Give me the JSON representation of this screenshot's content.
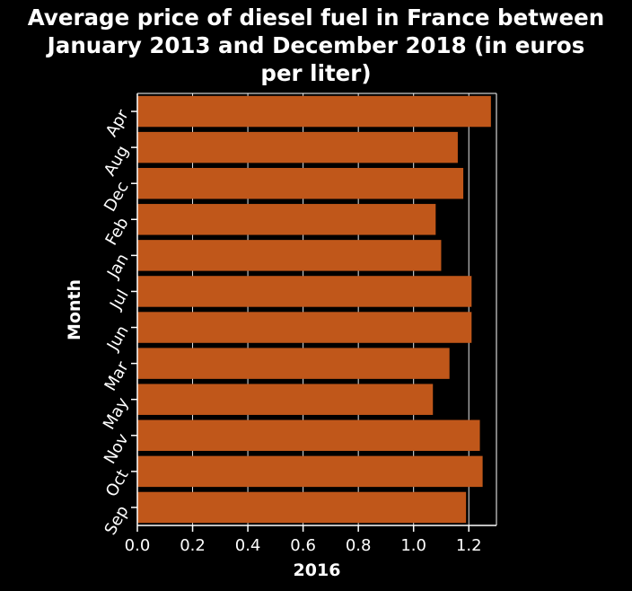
{
  "chart_data": {
    "type": "bar",
    "orientation": "horizontal",
    "title_lines": [
      "Average price of diesel fuel in France between",
      "January 2013 and December 2018 (in euros",
      "per liter)"
    ],
    "xlabel": "2016",
    "ylabel": "Month",
    "categories": [
      "Apr",
      "Aug",
      "Dec",
      "Feb",
      "Jan",
      "Jul",
      "Jun",
      "Mar",
      "May",
      "Nov",
      "Oct",
      "Sep"
    ],
    "values": [
      1.28,
      1.16,
      1.18,
      1.08,
      1.1,
      1.21,
      1.21,
      1.13,
      1.07,
      1.24,
      1.25,
      1.19
    ],
    "xlim": [
      0,
      1.3
    ],
    "xticks": [
      "0.0",
      "0.2",
      "0.4",
      "0.6",
      "0.8",
      "1.0",
      "1.2"
    ],
    "grid": "vertical",
    "colors": {
      "bar": "#c0571a",
      "background": "#000000",
      "text": "#ffffff",
      "axis": "#ffffff",
      "grid": "#ffffff"
    }
  }
}
